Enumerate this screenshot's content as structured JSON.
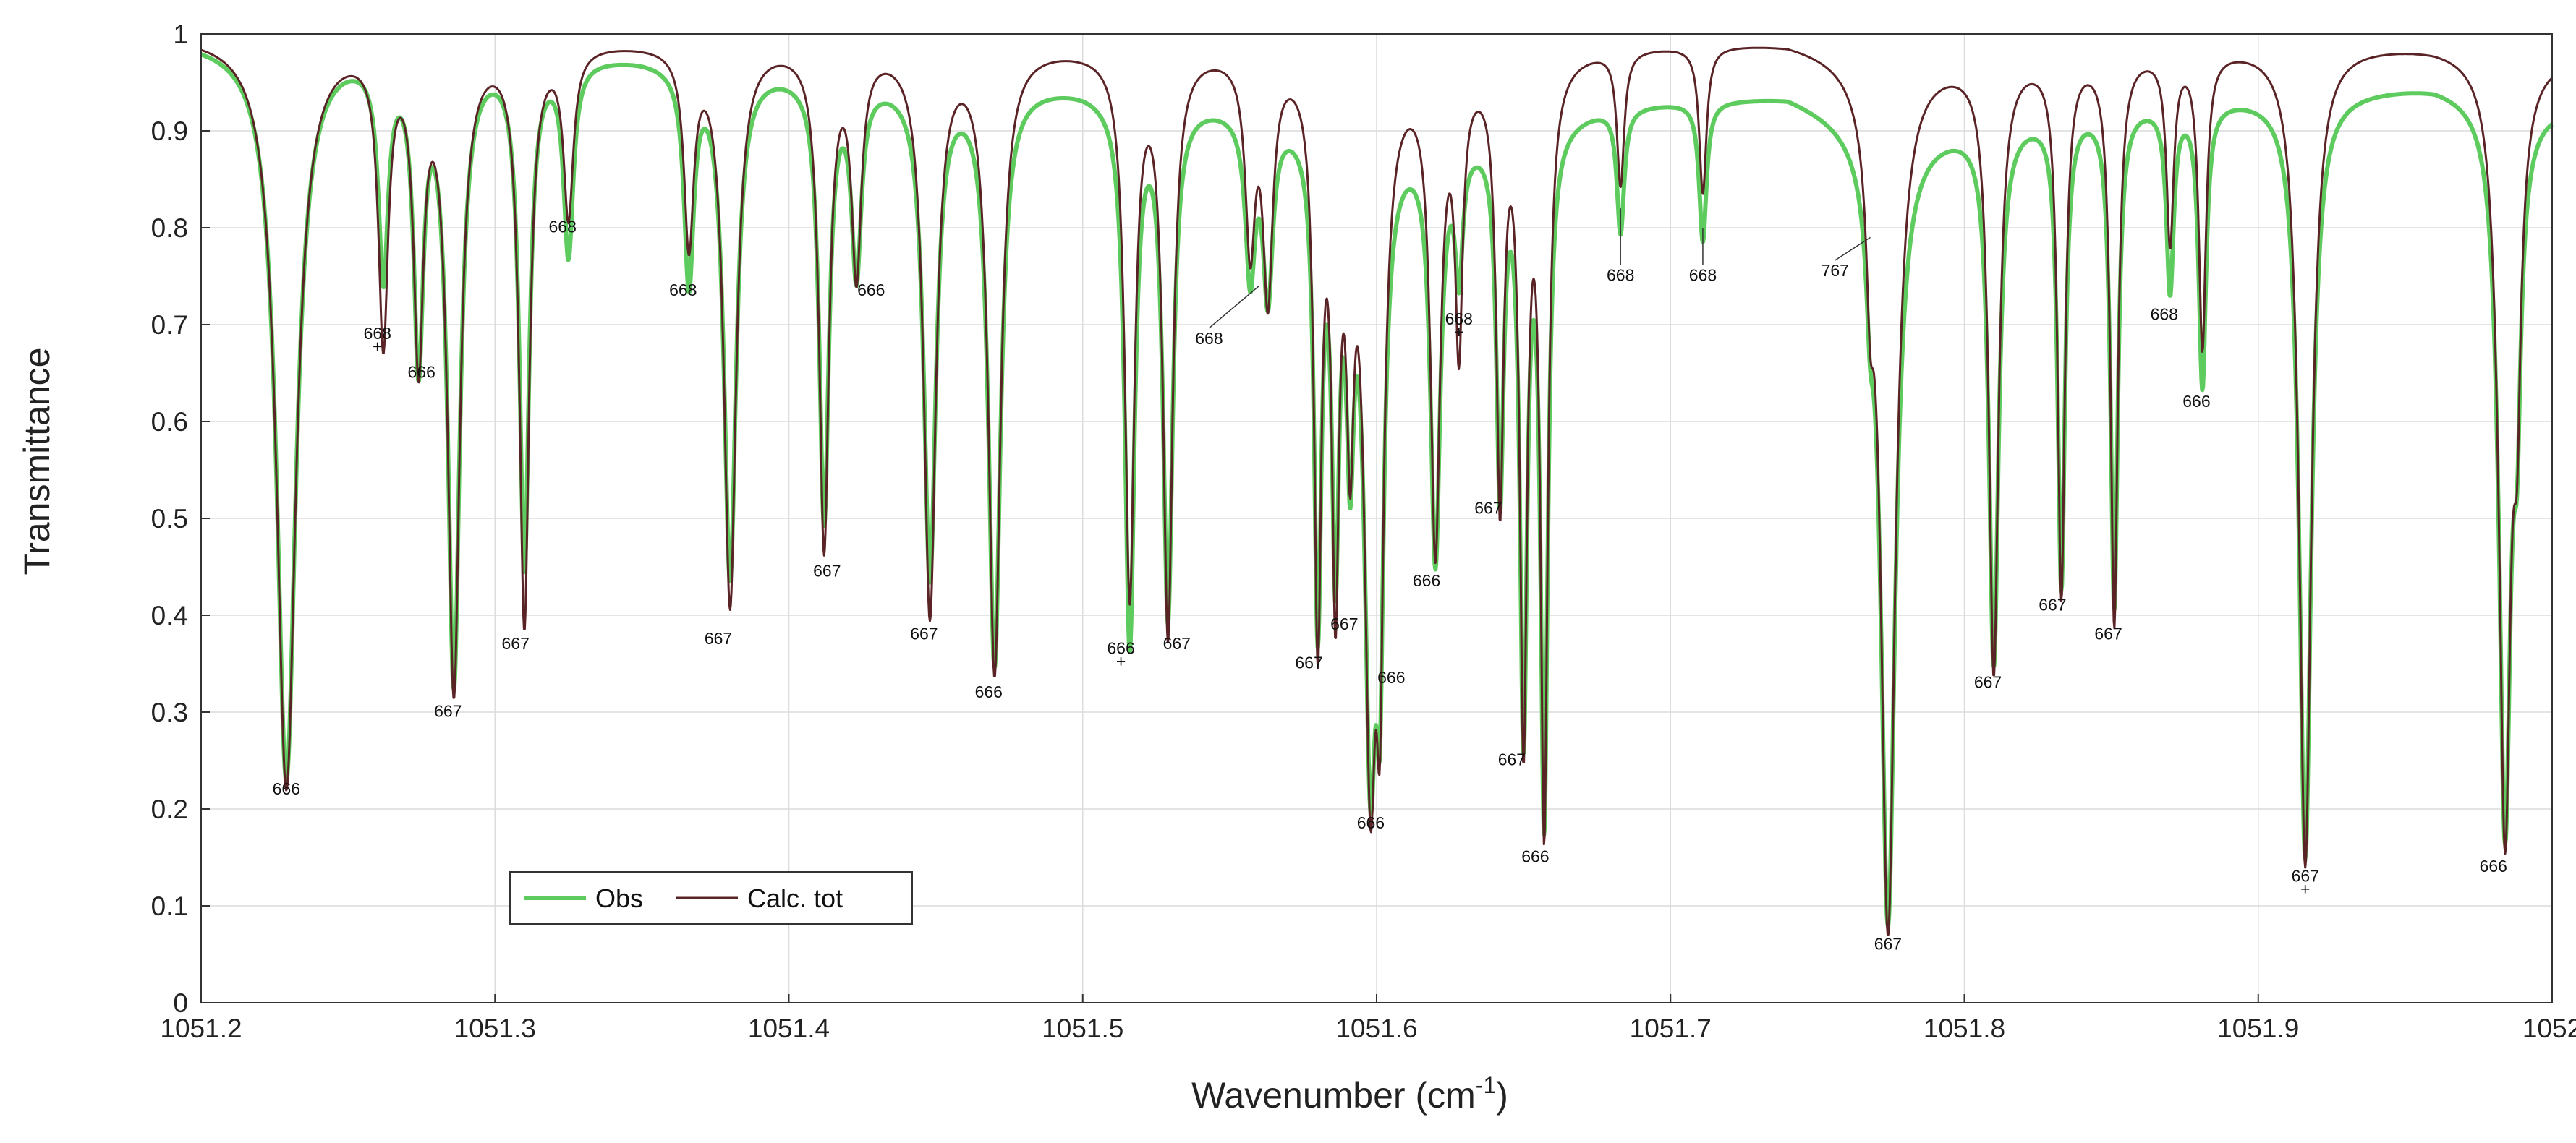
{
  "chart_data": {
    "type": "line",
    "title": "",
    "xlabel": "Wavenumber (cm",
    "xlabel_sup": "-1",
    "xlabel_close": ")",
    "ylabel": "Transmittance",
    "xlim": [
      1051.2,
      1052
    ],
    "ylim": [
      0,
      1
    ],
    "xticks": [
      1051.2,
      1051.3,
      1051.4,
      1051.5,
      1051.6,
      1051.7,
      1051.8,
      1051.9,
      1052
    ],
    "xtick_labels": [
      "1051.2",
      "1051.3",
      "1051.4",
      "1051.5",
      "1051.6",
      "1051.7",
      "1051.8",
      "1051.9",
      "1052"
    ],
    "yticks": [
      0,
      0.1,
      0.2,
      0.3,
      0.4,
      0.5,
      0.6,
      0.7,
      0.8,
      0.9,
      1
    ],
    "ytick_labels": [
      "0",
      "0.1",
      "0.2",
      "0.3",
      "0.4",
      "0.5",
      "0.6",
      "0.7",
      "0.8",
      "0.9",
      "1"
    ],
    "grid": true,
    "legend_position": "bottom-left",
    "colors": {
      "obs": "#5ecb5e",
      "calc": "#5a2326"
    },
    "series": [
      {
        "name": "Obs",
        "key": "obs",
        "baseline": [
          [
            1051.2,
            0.995
          ],
          [
            1051.35,
            0.98
          ],
          [
            1051.43,
            0.96
          ],
          [
            1051.5,
            0.95
          ],
          [
            1051.56,
            0.93
          ],
          [
            1051.62,
            0.9
          ],
          [
            1051.68,
            0.93
          ],
          [
            1051.74,
            0.94
          ],
          [
            1051.78,
            0.9
          ],
          [
            1051.84,
            0.93
          ],
          [
            1051.9,
            0.94
          ],
          [
            1051.96,
            0.95
          ],
          [
            1052,
            0.93
          ]
        ],
        "lines": [
          [
            1051.229,
            0.23,
            0.004
          ],
          [
            1051.262,
            0.76,
            0.002
          ],
          [
            1051.274,
            0.67,
            0.002
          ],
          [
            1051.286,
            0.33,
            0.0025
          ],
          [
            1051.31,
            0.45,
            0.002
          ],
          [
            1051.325,
            0.78,
            0.002
          ],
          [
            1051.366,
            0.75,
            0.002
          ],
          [
            1051.38,
            0.44,
            0.0025
          ],
          [
            1051.412,
            0.5,
            0.002
          ],
          [
            1051.423,
            0.76,
            0.002
          ],
          [
            1051.448,
            0.44,
            0.0025
          ],
          [
            1051.47,
            0.35,
            0.0025
          ],
          [
            1051.516,
            0.37,
            0.002
          ],
          [
            1051.529,
            0.4,
            0.002
          ],
          [
            1051.557,
            0.76,
            0.002
          ],
          [
            1051.563,
            0.74,
            0.002
          ],
          [
            1051.58,
            0.39,
            0.0015
          ],
          [
            1051.586,
            0.46,
            0.0015
          ],
          [
            1051.591,
            0.6,
            0.0015
          ],
          [
            1051.598,
            0.23,
            0.0025
          ],
          [
            1051.601,
            0.37,
            0.0015
          ],
          [
            1051.62,
            0.46,
            0.002
          ],
          [
            1051.628,
            0.77,
            0.0015
          ],
          [
            1051.642,
            0.53,
            0.0015
          ],
          [
            1051.65,
            0.27,
            0.0015
          ],
          [
            1051.657,
            0.18,
            0.0015
          ],
          [
            1051.683,
            0.8,
            0.0015
          ],
          [
            1051.711,
            0.79,
            0.0015
          ],
          [
            1051.768,
            0.8,
            0.0015
          ],
          [
            1051.774,
            0.08,
            0.003
          ],
          [
            1051.81,
            0.35,
            0.002
          ],
          [
            1051.833,
            0.43,
            0.0015
          ],
          [
            1051.851,
            0.41,
            0.0015
          ],
          [
            1051.87,
            0.74,
            0.0015
          ],
          [
            1051.881,
            0.64,
            0.0015
          ],
          [
            1051.916,
            0.15,
            0.0025
          ],
          [
            1051.984,
            0.17,
            0.0025
          ],
          [
            1051.988,
            0.68,
            0.0015
          ]
        ]
      },
      {
        "name": "Calc. tot",
        "key": "calc",
        "baseline": [
          [
            1051.2,
            1.0
          ],
          [
            1051.35,
            0.995
          ],
          [
            1051.43,
            0.995
          ],
          [
            1051.5,
            0.99
          ],
          [
            1051.56,
            0.99
          ],
          [
            1051.62,
            0.975
          ],
          [
            1051.68,
            0.99
          ],
          [
            1051.74,
            0.995
          ],
          [
            1051.78,
            0.975
          ],
          [
            1051.84,
            0.985
          ],
          [
            1051.9,
            0.99
          ],
          [
            1051.96,
            0.99
          ],
          [
            1052,
            0.98
          ]
        ],
        "lines": [
          [
            1051.229,
            0.22,
            0.004
          ],
          [
            1051.262,
            0.69,
            0.002
          ],
          [
            1051.274,
            0.67,
            0.002
          ],
          [
            1051.286,
            0.32,
            0.0025
          ],
          [
            1051.31,
            0.39,
            0.002
          ],
          [
            1051.325,
            0.82,
            0.002
          ],
          [
            1051.366,
            0.79,
            0.002
          ],
          [
            1051.38,
            0.41,
            0.0025
          ],
          [
            1051.412,
            0.47,
            0.002
          ],
          [
            1051.423,
            0.76,
            0.002
          ],
          [
            1051.448,
            0.4,
            0.0025
          ],
          [
            1051.47,
            0.34,
            0.0025
          ],
          [
            1051.516,
            0.42,
            0.002
          ],
          [
            1051.529,
            0.38,
            0.002
          ],
          [
            1051.557,
            0.79,
            0.002
          ],
          [
            1051.563,
            0.74,
            0.002
          ],
          [
            1051.58,
            0.37,
            0.0015
          ],
          [
            1051.586,
            0.42,
            0.0015
          ],
          [
            1051.591,
            0.62,
            0.0015
          ],
          [
            1051.598,
            0.21,
            0.0025
          ],
          [
            1051.601,
            0.36,
            0.0015
          ],
          [
            1051.62,
            0.47,
            0.002
          ],
          [
            1051.628,
            0.69,
            0.0015
          ],
          [
            1051.642,
            0.52,
            0.0015
          ],
          [
            1051.65,
            0.26,
            0.0015
          ],
          [
            1051.657,
            0.17,
            0.0015
          ],
          [
            1051.683,
            0.85,
            0.0015
          ],
          [
            1051.711,
            0.84,
            0.0015
          ],
          [
            1051.768,
            0.82,
            0.0015
          ],
          [
            1051.774,
            0.07,
            0.003
          ],
          [
            1051.81,
            0.34,
            0.002
          ],
          [
            1051.833,
            0.42,
            0.0015
          ],
          [
            1051.851,
            0.39,
            0.0015
          ],
          [
            1051.87,
            0.79,
            0.0015
          ],
          [
            1051.881,
            0.68,
            0.0015
          ],
          [
            1051.916,
            0.14,
            0.0025
          ],
          [
            1051.984,
            0.16,
            0.0025
          ],
          [
            1051.988,
            0.69,
            0.0015
          ]
        ]
      }
    ],
    "annotations": [
      {
        "text": "666",
        "x": 1051.229,
        "y": 0.22,
        "label_x": 1051.229,
        "label_y": 0.215
      },
      {
        "text": "668",
        "x": 1051.262,
        "y": 0.69,
        "label_x": 1051.26,
        "label_y": 0.685,
        "marker": "+"
      },
      {
        "text": "666",
        "x": 1051.274,
        "y": 0.67,
        "label_x": 1051.275,
        "label_y": 0.645
      },
      {
        "text": "667",
        "x": 1051.286,
        "y": 0.32,
        "label_x": 1051.284,
        "label_y": 0.295
      },
      {
        "text": "667",
        "x": 1051.31,
        "y": 0.39,
        "label_x": 1051.307,
        "label_y": 0.365
      },
      {
        "text": "668",
        "x": 1051.325,
        "y": 0.78,
        "label_x": 1051.323,
        "label_y": 0.795
      },
      {
        "text": "668",
        "x": 1051.366,
        "y": 0.75,
        "label_x": 1051.364,
        "label_y": 0.73
      },
      {
        "text": "667",
        "x": 1051.38,
        "y": 0.41,
        "label_x": 1051.376,
        "label_y": 0.37
      },
      {
        "text": "667",
        "x": 1051.412,
        "y": 0.47,
        "label_x": 1051.413,
        "label_y": 0.44
      },
      {
        "text": "666",
        "x": 1051.423,
        "y": 0.76,
        "label_x": 1051.428,
        "label_y": 0.73
      },
      {
        "text": "667",
        "x": 1051.448,
        "y": 0.4,
        "label_x": 1051.446,
        "label_y": 0.375
      },
      {
        "text": "666",
        "x": 1051.47,
        "y": 0.34,
        "label_x": 1051.468,
        "label_y": 0.315
      },
      {
        "text": "666",
        "x": 1051.516,
        "y": 0.37,
        "label_x": 1051.513,
        "label_y": 0.36,
        "marker": "+"
      },
      {
        "text": "667",
        "x": 1051.529,
        "y": 0.38,
        "label_x": 1051.532,
        "label_y": 0.365
      },
      {
        "text": "668",
        "x": 1051.56,
        "y": 0.74,
        "label_x": 1051.543,
        "label_y": 0.68,
        "leader": true
      },
      {
        "text": "667",
        "x": 1051.58,
        "y": 0.37,
        "label_x": 1051.577,
        "label_y": 0.345
      },
      {
        "text": "667",
        "x": 1051.586,
        "y": 0.42,
        "label_x": 1051.589,
        "label_y": 0.385
      },
      {
        "text": "666",
        "x": 1051.601,
        "y": 0.36,
        "label_x": 1051.605,
        "label_y": 0.33
      },
      {
        "text": "666",
        "x": 1051.598,
        "y": 0.21,
        "label_x": 1051.598,
        "label_y": 0.18
      },
      {
        "text": "666",
        "x": 1051.62,
        "y": 0.46,
        "label_x": 1051.617,
        "label_y": 0.43
      },
      {
        "text": "668",
        "x": 1051.628,
        "y": 0.69,
        "label_x": 1051.628,
        "label_y": 0.7,
        "marker": "+"
      },
      {
        "text": "667",
        "x": 1051.642,
        "y": 0.52,
        "label_x": 1051.638,
        "label_y": 0.505
      },
      {
        "text": "667",
        "x": 1051.65,
        "y": 0.26,
        "label_x": 1051.646,
        "label_y": 0.245
      },
      {
        "text": "666",
        "x": 1051.657,
        "y": 0.17,
        "label_x": 1051.654,
        "label_y": 0.145
      },
      {
        "text": "668",
        "x": 1051.683,
        "y": 0.82,
        "label_x": 1051.683,
        "label_y": 0.745,
        "leader": true
      },
      {
        "text": "668",
        "x": 1051.711,
        "y": 0.8,
        "label_x": 1051.711,
        "label_y": 0.745,
        "leader": true
      },
      {
        "text": "767",
        "x": 1051.768,
        "y": 0.79,
        "label_x": 1051.756,
        "label_y": 0.75,
        "leader": true
      },
      {
        "text": "667",
        "x": 1051.774,
        "y": 0.07,
        "label_x": 1051.774,
        "label_y": 0.055
      },
      {
        "text": "667",
        "x": 1051.81,
        "y": 0.34,
        "label_x": 1051.808,
        "label_y": 0.325
      },
      {
        "text": "667",
        "x": 1051.833,
        "y": 0.42,
        "label_x": 1051.83,
        "label_y": 0.405
      },
      {
        "text": "667",
        "x": 1051.851,
        "y": 0.39,
        "label_x": 1051.849,
        "label_y": 0.375
      },
      {
        "text": "668",
        "x": 1051.87,
        "y": 0.74,
        "label_x": 1051.868,
        "label_y": 0.705
      },
      {
        "text": "666",
        "x": 1051.881,
        "y": 0.64,
        "label_x": 1051.879,
        "label_y": 0.615
      },
      {
        "text": "667",
        "x": 1051.916,
        "y": 0.14,
        "label_x": 1051.916,
        "label_y": 0.125,
        "marker": "+"
      },
      {
        "text": "666",
        "x": 1051.984,
        "y": 0.16,
        "label_x": 1051.98,
        "label_y": 0.135
      }
    ]
  }
}
